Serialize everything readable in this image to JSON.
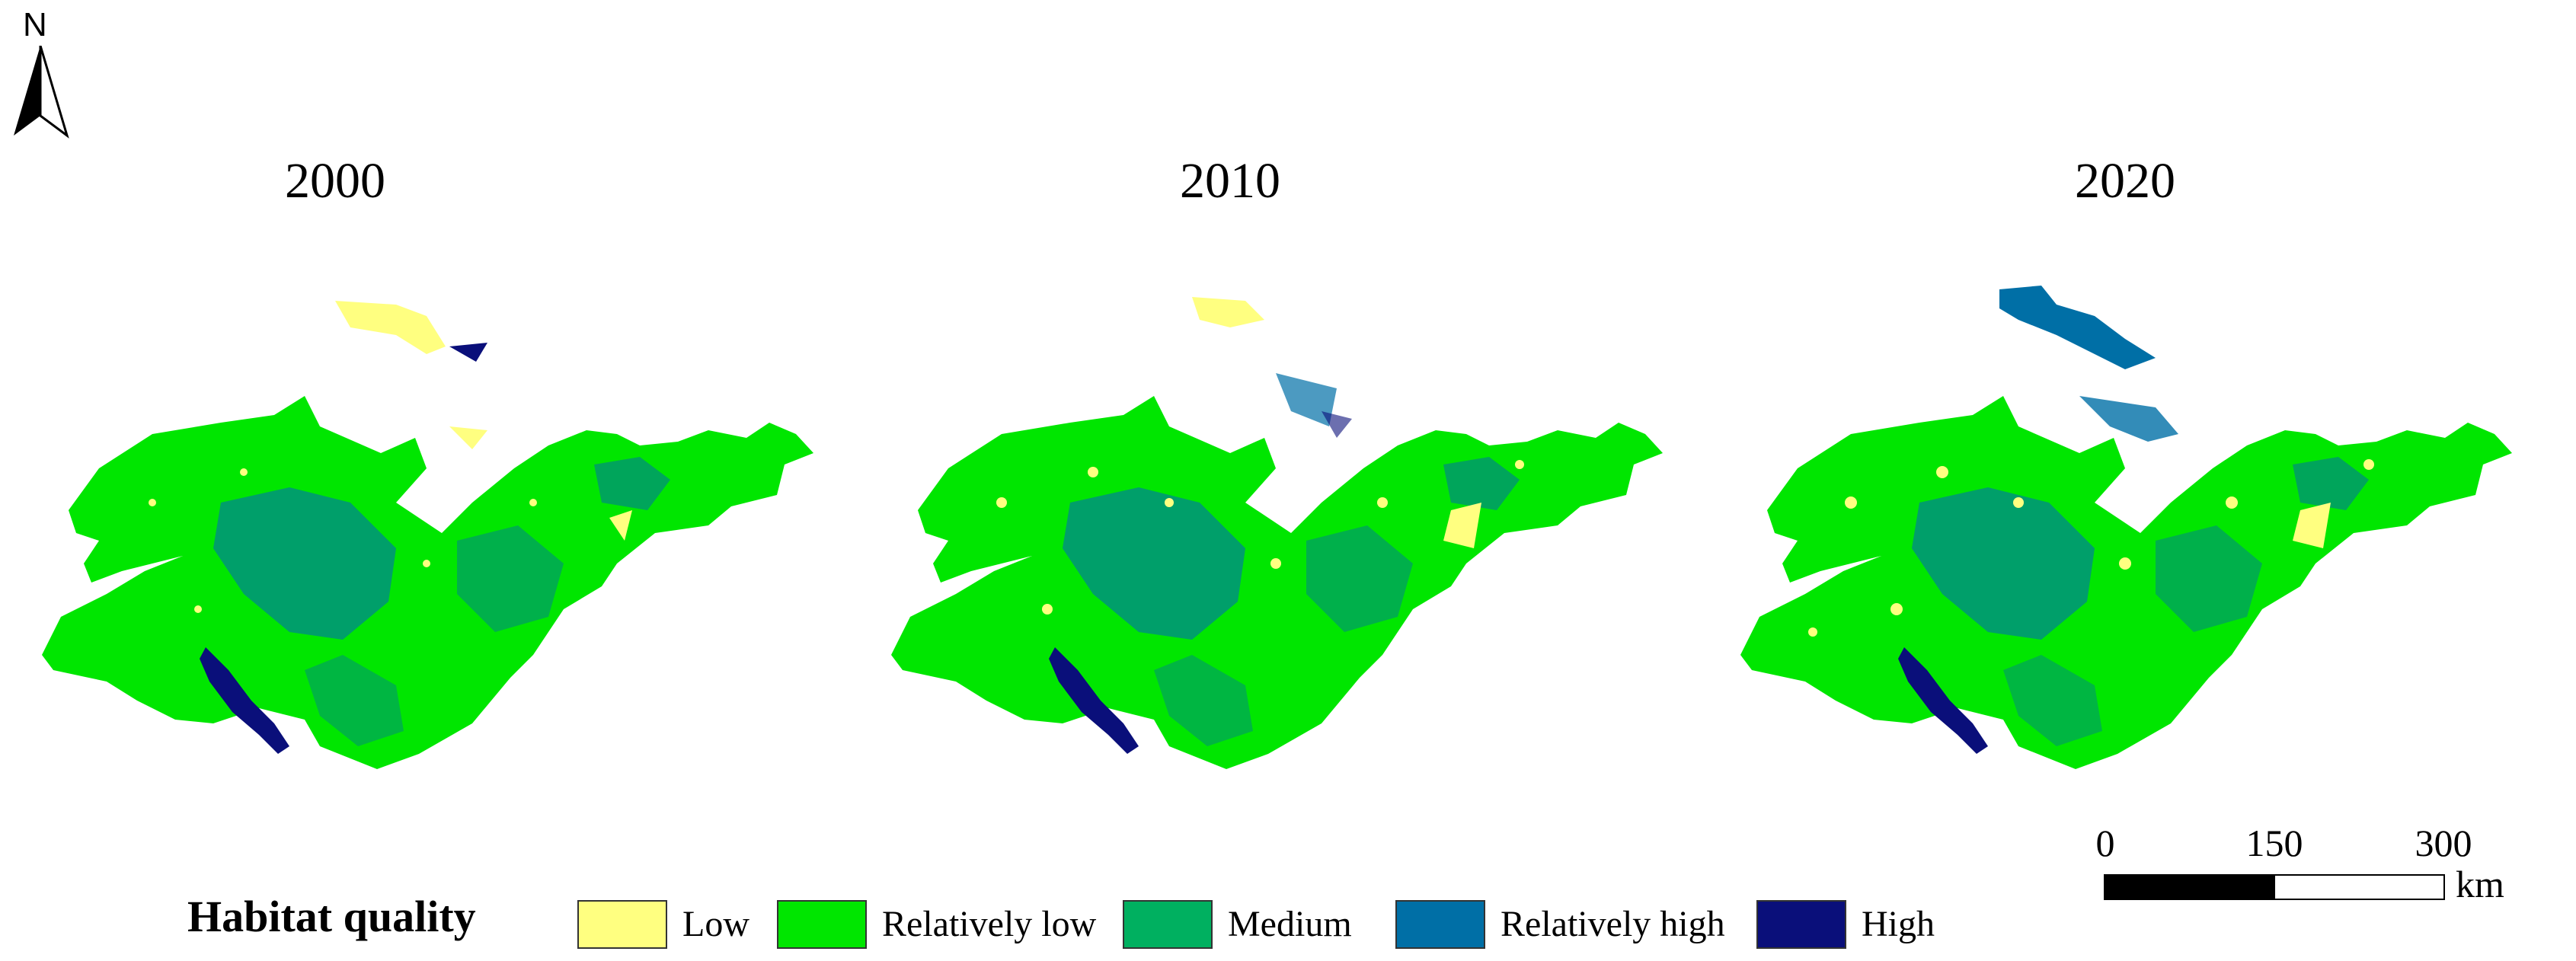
{
  "north": {
    "label": "N",
    "icon": "north-arrow-icon"
  },
  "maps": [
    {
      "year": "2000"
    },
    {
      "year": "2010"
    },
    {
      "year": "2020"
    }
  ],
  "scale_bar": {
    "ticks": [
      "0",
      "150",
      "300"
    ],
    "unit": "km"
  },
  "legend": {
    "title": "Habitat quality",
    "items": [
      {
        "label": "Low",
        "color": "#FFFF80"
      },
      {
        "label": "Relatively low",
        "color": "#00E600"
      },
      {
        "label": "Medium",
        "color": "#00B060"
      },
      {
        "label": "Relatively high",
        "color": "#006FA6"
      },
      {
        "label": "High",
        "color": "#0A0F7A"
      }
    ]
  }
}
